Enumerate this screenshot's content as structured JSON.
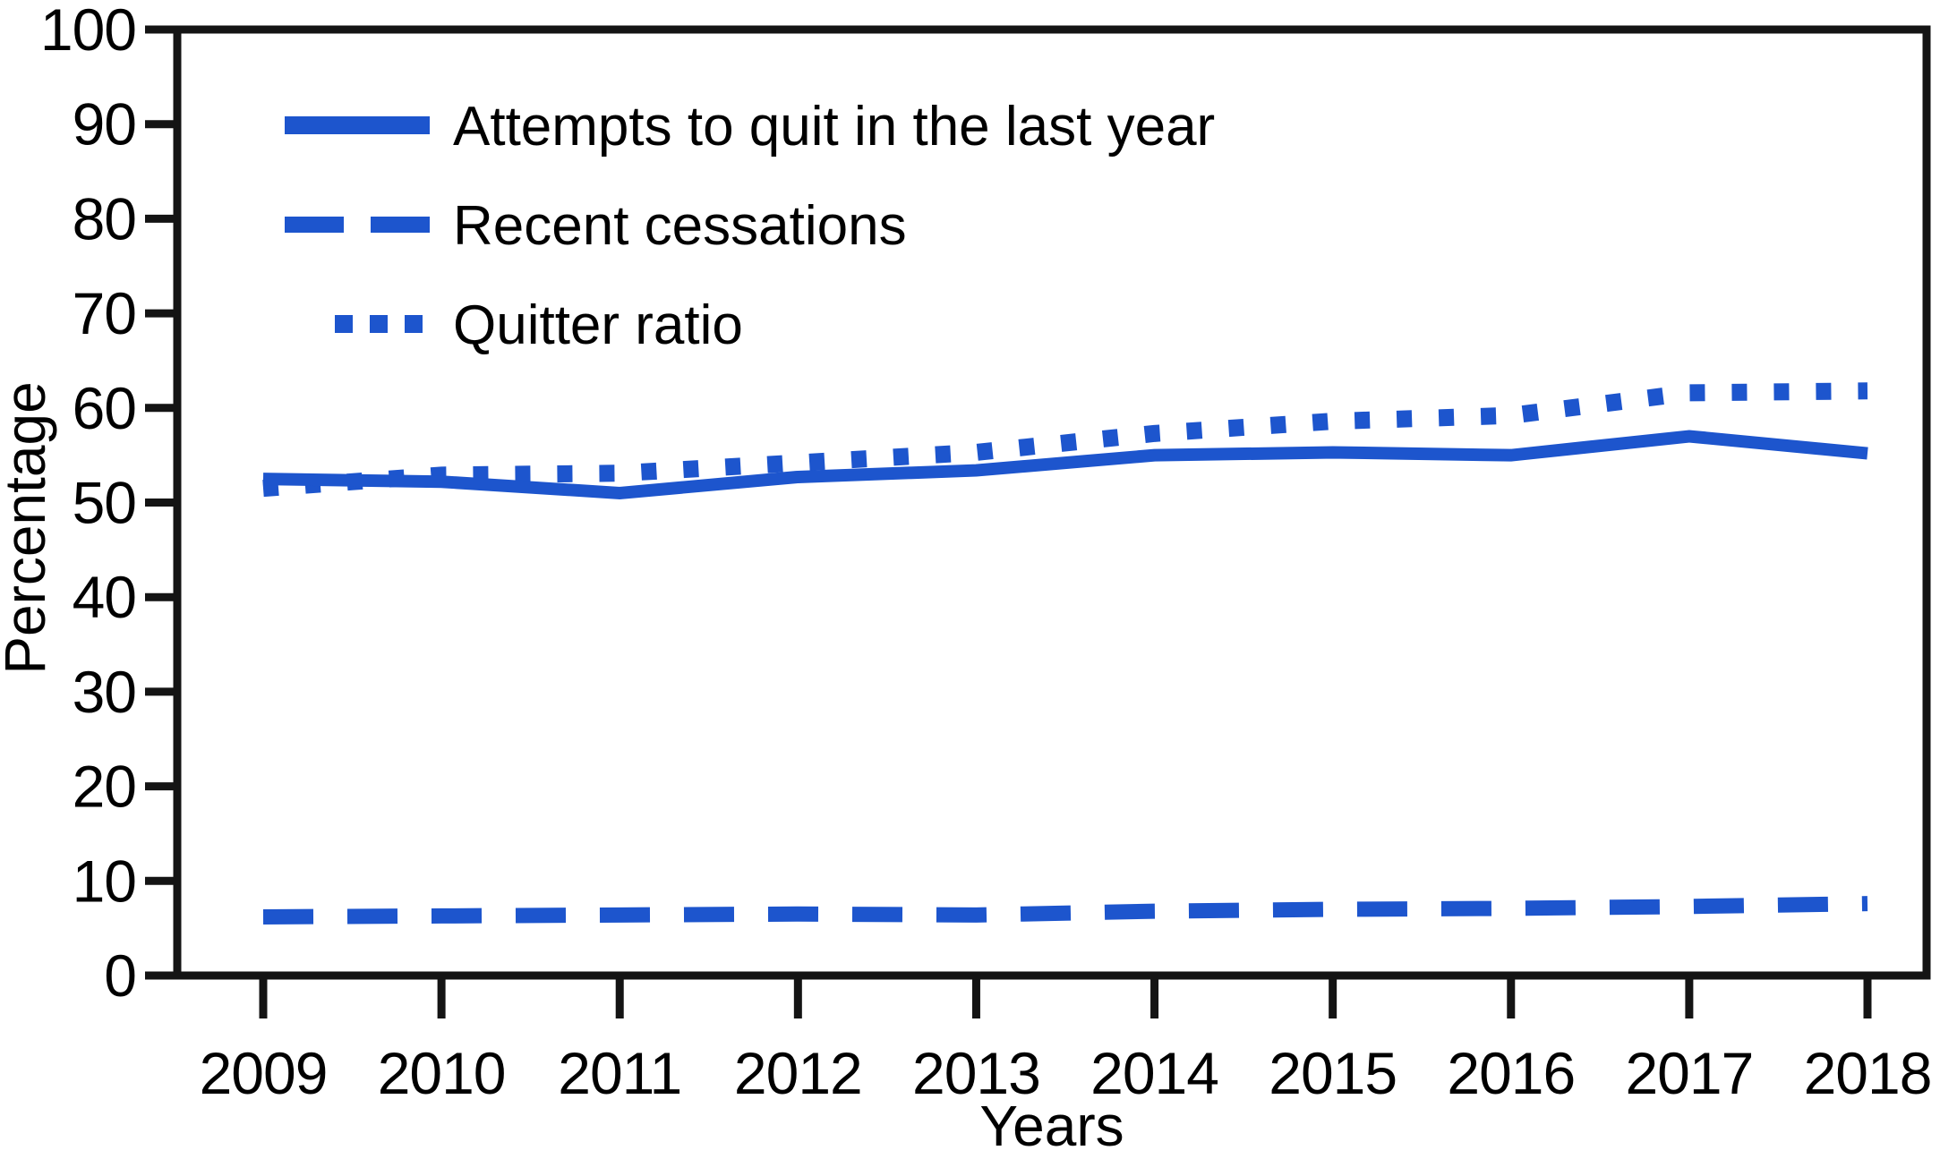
{
  "chart_data": {
    "type": "line",
    "title": "",
    "xlabel": "Years",
    "ylabel": "Percentage",
    "x": [
      2009,
      2010,
      2011,
      2012,
      2013,
      2014,
      2015,
      2016,
      2017,
      2018
    ],
    "ylim": [
      0,
      100
    ],
    "y_ticks": [
      0,
      10,
      20,
      30,
      40,
      50,
      60,
      70,
      80,
      90,
      100
    ],
    "grid": false,
    "legend_position": "top-left-inside",
    "line_color": "#1d55cd",
    "axis_color": "#141414",
    "series": [
      {
        "name": "Attempts to quit in the last year",
        "line_style": "solid",
        "values": [
          52.5,
          52.2,
          51.0,
          52.7,
          53.4,
          55.0,
          55.3,
          55.0,
          57.0,
          55.2
        ]
      },
      {
        "name": "Recent cessations",
        "line_style": "dashed",
        "values": [
          6.2,
          6.3,
          6.4,
          6.5,
          6.4,
          6.8,
          7.0,
          7.1,
          7.3,
          7.6
        ]
      },
      {
        "name": "Quitter ratio",
        "line_style": "dotted",
        "values": [
          51.5,
          52.9,
          53.1,
          54.2,
          55.3,
          57.3,
          58.6,
          59.2,
          61.6,
          61.8
        ]
      }
    ]
  }
}
